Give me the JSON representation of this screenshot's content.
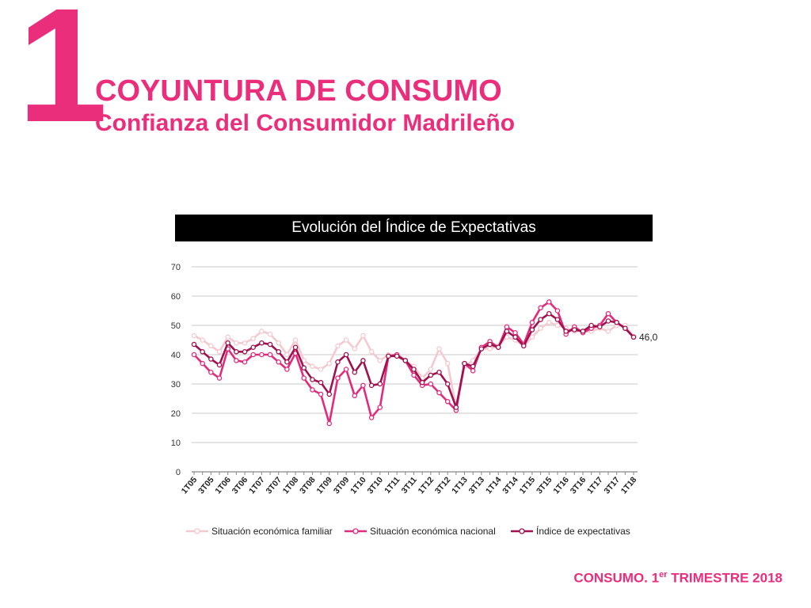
{
  "header": {
    "number": "1",
    "title": "COYUNTURA DE CONSUMO",
    "subtitle": "Confianza del Consumidor Madrileño"
  },
  "footer": {
    "prefix": "CONSUMO. 1",
    "sup": "er",
    "suffix": " TRIMESTRE 2018"
  },
  "colors": {
    "brand": "#ea2e7c",
    "familiar": "#f5c9d0",
    "nacional": "#e32b7c",
    "expectativas": "#a0124f"
  },
  "chart_data": {
    "type": "line",
    "title": "Evolución del Índice de Expectativas",
    "ylim": [
      0,
      70
    ],
    "yticks": [
      "0",
      "10",
      "20",
      "30",
      "40",
      "50",
      "60",
      "70"
    ],
    "grid": true,
    "legend_position": "bottom",
    "annotation": "46,0",
    "categories": [
      "1T05",
      "2T05",
      "3T05",
      "4T05",
      "1T06",
      "2T06",
      "3T06",
      "4T06",
      "1T07",
      "2T07",
      "3T07",
      "4T07",
      "1T08",
      "2T08",
      "3T08",
      "4T08",
      "1T09",
      "2T09",
      "3T09",
      "4T09",
      "1T10",
      "2T10",
      "3T10",
      "4T10",
      "1T11",
      "2T11",
      "3T11",
      "4T11",
      "1T12",
      "2T12",
      "3T12",
      "4T12",
      "1T13",
      "2T13",
      "3T13",
      "4T13",
      "1T14",
      "2T14",
      "3T14",
      "4T14",
      "1T15",
      "2T15",
      "3T15",
      "4T15",
      "1T16",
      "2T16",
      "3T16",
      "4T16",
      "1T17",
      "2T17",
      "3T17",
      "4T17",
      "1T18"
    ],
    "tick_labels": [
      "1T05",
      "3T05",
      "1T06",
      "3T06",
      "1T07",
      "3T07",
      "1T08",
      "3T08",
      "1T09",
      "3T09",
      "1T10",
      "3T10",
      "1T11",
      "3T11",
      "1T12",
      "3T12",
      "1T13",
      "3T13",
      "1T14",
      "3T14",
      "1T15",
      "3T15",
      "1T16",
      "3T16",
      "1T17",
      "3T17",
      "1T18"
    ],
    "series": [
      {
        "name": "Situación económica familiar",
        "values": [
          46.5,
          45,
          43,
          41,
          46,
          44,
          44,
          45.5,
          48,
          47,
          44,
          40,
          45,
          38,
          36,
          35,
          37,
          43,
          45,
          42,
          46.5,
          41,
          38,
          40,
          40,
          38,
          36,
          32,
          35,
          42,
          37,
          22,
          36,
          38,
          42,
          42,
          43,
          46,
          45,
          43,
          46,
          49,
          51,
          50,
          49,
          48,
          48,
          48,
          49,
          48,
          50,
          50,
          46
        ]
      },
      {
        "name": "Situación económica nacional",
        "values": [
          40,
          37,
          34,
          32,
          42,
          38,
          37.5,
          40,
          40,
          40,
          37.5,
          35,
          40.5,
          32,
          28,
          26.5,
          16.5,
          32,
          35,
          26,
          29.5,
          18.5,
          22,
          39.5,
          40,
          38,
          33,
          29.5,
          30,
          27,
          24,
          21,
          37,
          34.5,
          42.5,
          44.5,
          42.5,
          49.5,
          47.5,
          43.5,
          51,
          56,
          58,
          55,
          47,
          49.5,
          47.5,
          49,
          50,
          54,
          51,
          49,
          46
        ]
      },
      {
        "name": "Índice de expectativas",
        "values": [
          43.5,
          41,
          38.5,
          36.5,
          44,
          41,
          41,
          42.5,
          44,
          43.5,
          41,
          37.5,
          42.5,
          35.5,
          31.5,
          30.5,
          26.5,
          37.5,
          40,
          34,
          38,
          29.5,
          30,
          39.5,
          39.5,
          38,
          35,
          30.5,
          33,
          34,
          30,
          22,
          37,
          36,
          42,
          43.5,
          42.5,
          48,
          46,
          43,
          48.5,
          52,
          54,
          52,
          48,
          48.5,
          48,
          50,
          49.5,
          51.5,
          51,
          49,
          46
        ]
      }
    ]
  }
}
